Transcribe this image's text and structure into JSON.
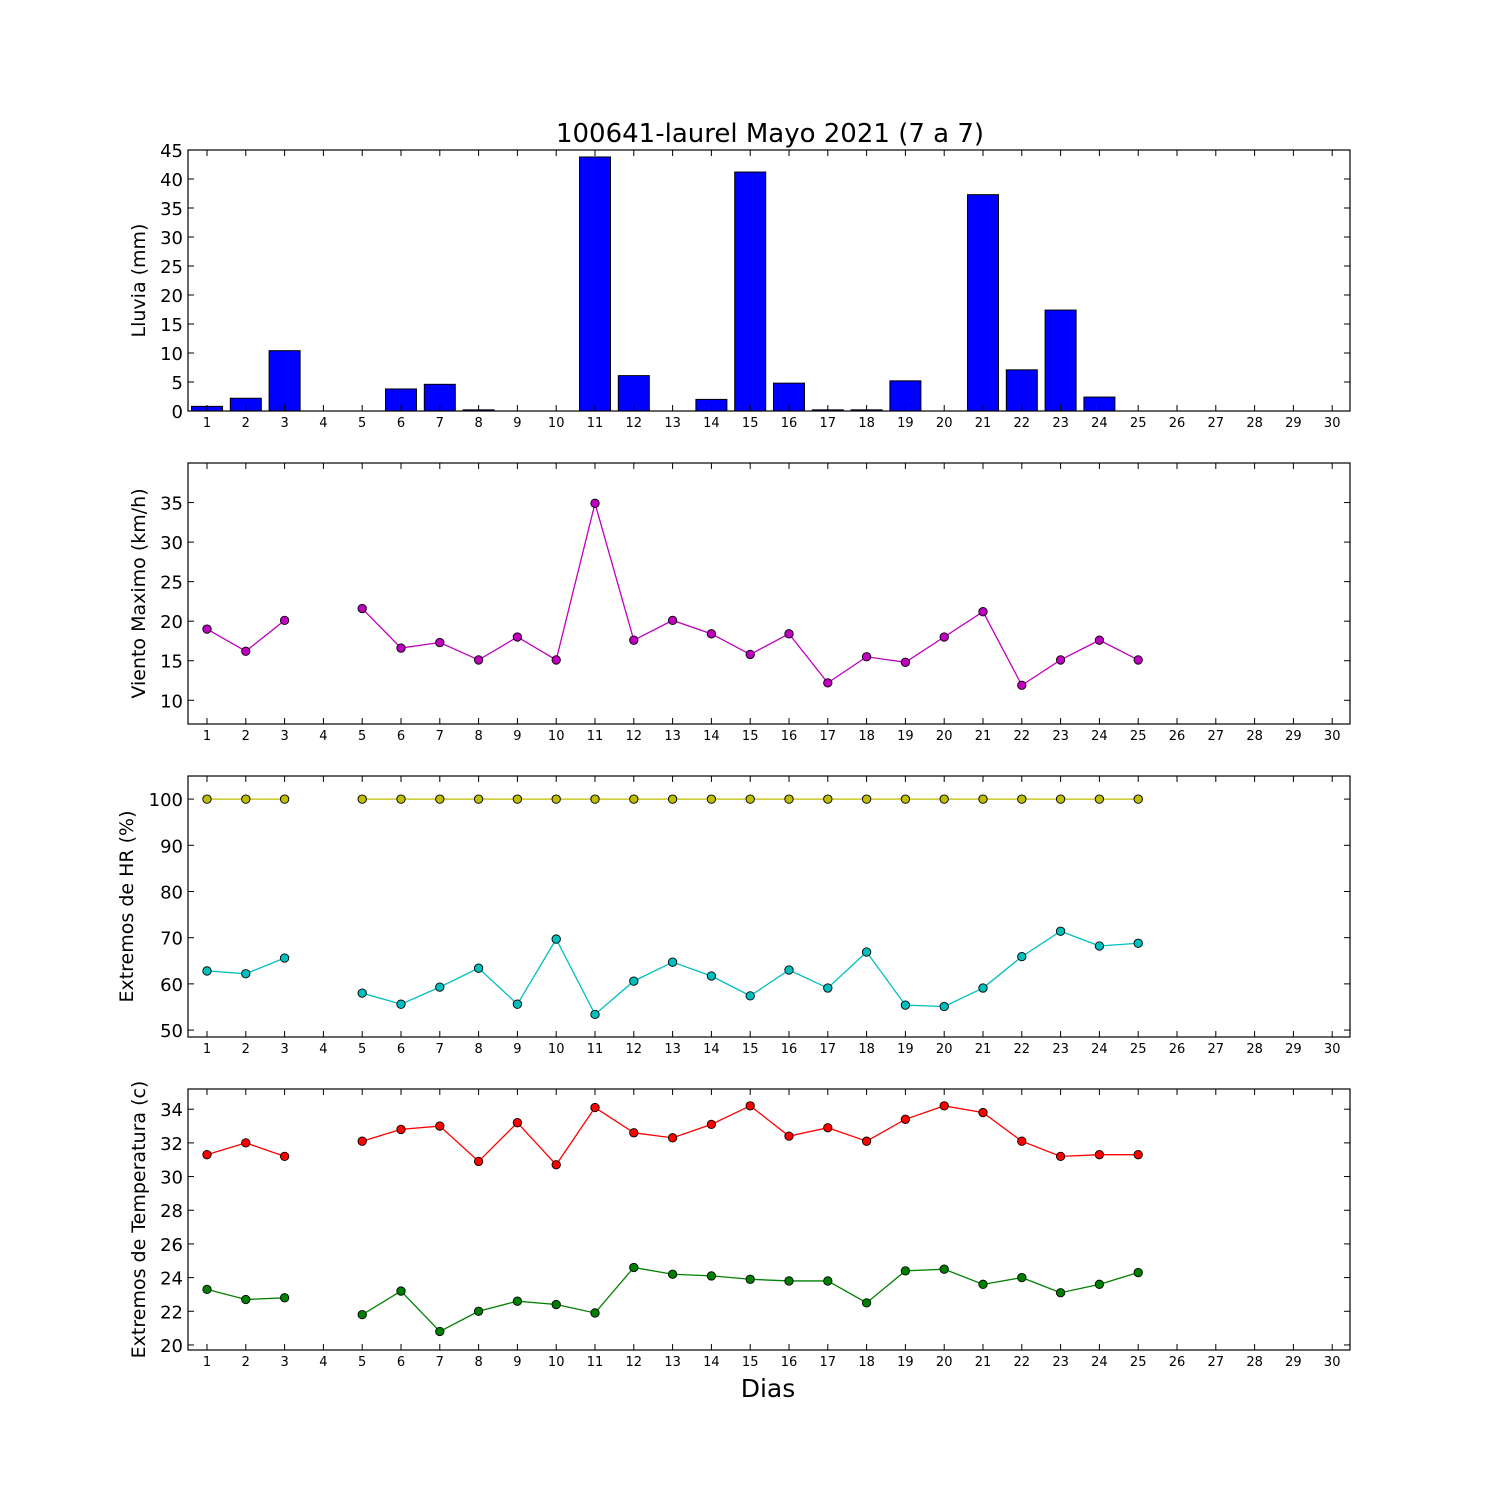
{
  "figure": {
    "title": "100641-laurel Mayo 2021  (7 a 7)",
    "xlabel": "Dias"
  },
  "chart_data": [
    {
      "type": "bar",
      "ylabel": "Lluvia (mm)",
      "categories": [
        "1",
        "2",
        "3",
        "4",
        "5",
        "6",
        "7",
        "8",
        "9",
        "10",
        "11",
        "12",
        "13",
        "14",
        "15",
        "16",
        "17",
        "18",
        "19",
        "20",
        "21",
        "22",
        "23",
        "24",
        "25",
        "26",
        "27",
        "28",
        "29",
        "30"
      ],
      "values": [
        0.8,
        2.2,
        10.4,
        0,
        0,
        3.8,
        4.6,
        0.2,
        0,
        0,
        43.8,
        6.1,
        0,
        2.0,
        41.2,
        4.8,
        0.2,
        0.2,
        5.2,
        0,
        37.3,
        7.1,
        17.4,
        2.4,
        0,
        null,
        null,
        null,
        null,
        null
      ],
      "ylim": [
        0,
        45
      ],
      "yticks": [
        0,
        5,
        10,
        15,
        20,
        25,
        30,
        35,
        40,
        45
      ],
      "colors": {
        "bar": "#0000ff",
        "edge": "#000000"
      }
    },
    {
      "type": "line",
      "ylabel": "Viento Maximo (km/h)",
      "categories": [
        "1",
        "2",
        "3",
        "4",
        "5",
        "6",
        "7",
        "8",
        "9",
        "10",
        "11",
        "12",
        "13",
        "14",
        "15",
        "16",
        "17",
        "18",
        "19",
        "20",
        "21",
        "22",
        "23",
        "24",
        "25",
        "26",
        "27",
        "28",
        "29",
        "30"
      ],
      "series": [
        {
          "color": "#bf00bf",
          "values": [
            19.0,
            16.2,
            20.1,
            null,
            21.6,
            16.6,
            17.3,
            15.1,
            18.0,
            15.1,
            34.9,
            17.6,
            20.1,
            18.4,
            15.8,
            18.4,
            12.2,
            15.5,
            14.8,
            18.0,
            21.2,
            11.9,
            15.1,
            17.6,
            15.1,
            null,
            null,
            null,
            null,
            null
          ]
        }
      ],
      "ylim": [
        7,
        40
      ],
      "yticks": [
        10,
        15,
        20,
        25,
        30,
        35
      ]
    },
    {
      "type": "line",
      "ylabel": "Extremos de HR (%)",
      "categories": [
        "1",
        "2",
        "3",
        "4",
        "5",
        "6",
        "7",
        "8",
        "9",
        "10",
        "11",
        "12",
        "13",
        "14",
        "15",
        "16",
        "17",
        "18",
        "19",
        "20",
        "21",
        "22",
        "23",
        "24",
        "25",
        "26",
        "27",
        "28",
        "29",
        "30"
      ],
      "series": [
        {
          "color": "#bfbf00",
          "values": [
            100,
            100,
            100,
            null,
            100,
            100,
            100,
            100,
            100,
            100,
            100,
            100,
            100,
            100,
            100,
            100,
            100,
            100,
            100,
            100,
            100,
            100,
            100,
            100,
            100,
            null,
            null,
            null,
            null,
            null
          ]
        },
        {
          "color": "#00bfbf",
          "values": [
            62.8,
            62.2,
            65.6,
            null,
            58.0,
            55.6,
            59.3,
            63.4,
            55.6,
            69.7,
            53.4,
            60.6,
            64.7,
            61.7,
            57.4,
            63.0,
            59.1,
            66.9,
            55.4,
            55.1,
            59.1,
            65.9,
            71.4,
            68.2,
            68.8,
            null,
            null,
            null,
            null,
            null
          ]
        }
      ],
      "ylim": [
        48.5,
        105
      ],
      "yticks": [
        50,
        60,
        70,
        80,
        90,
        100
      ]
    },
    {
      "type": "line",
      "ylabel": "Extremos de Temperatura (c)",
      "categories": [
        "1",
        "2",
        "3",
        "4",
        "5",
        "6",
        "7",
        "8",
        "9",
        "10",
        "11",
        "12",
        "13",
        "14",
        "15",
        "16",
        "17",
        "18",
        "19",
        "20",
        "21",
        "22",
        "23",
        "24",
        "25",
        "26",
        "27",
        "28",
        "29",
        "30"
      ],
      "series": [
        {
          "color": "#ff0000",
          "values": [
            31.3,
            32.0,
            31.2,
            null,
            32.1,
            32.8,
            33.0,
            30.9,
            33.2,
            30.7,
            34.1,
            32.6,
            32.3,
            33.1,
            34.2,
            32.4,
            32.9,
            32.1,
            33.4,
            34.2,
            33.8,
            32.1,
            31.2,
            31.3,
            31.3,
            null,
            null,
            null,
            null,
            null
          ]
        },
        {
          "color": "#008000",
          "values": [
            23.3,
            22.7,
            22.8,
            null,
            21.8,
            23.2,
            20.8,
            22.0,
            22.6,
            22.4,
            21.9,
            24.6,
            24.2,
            24.1,
            23.9,
            23.8,
            23.8,
            22.5,
            24.4,
            24.5,
            23.6,
            24.0,
            23.1,
            23.6,
            24.3,
            null,
            null,
            null,
            null,
            null
          ]
        }
      ],
      "ylim": [
        19.7,
        35.2
      ],
      "yticks": [
        20,
        22,
        24,
        26,
        28,
        30,
        32,
        34
      ]
    }
  ]
}
